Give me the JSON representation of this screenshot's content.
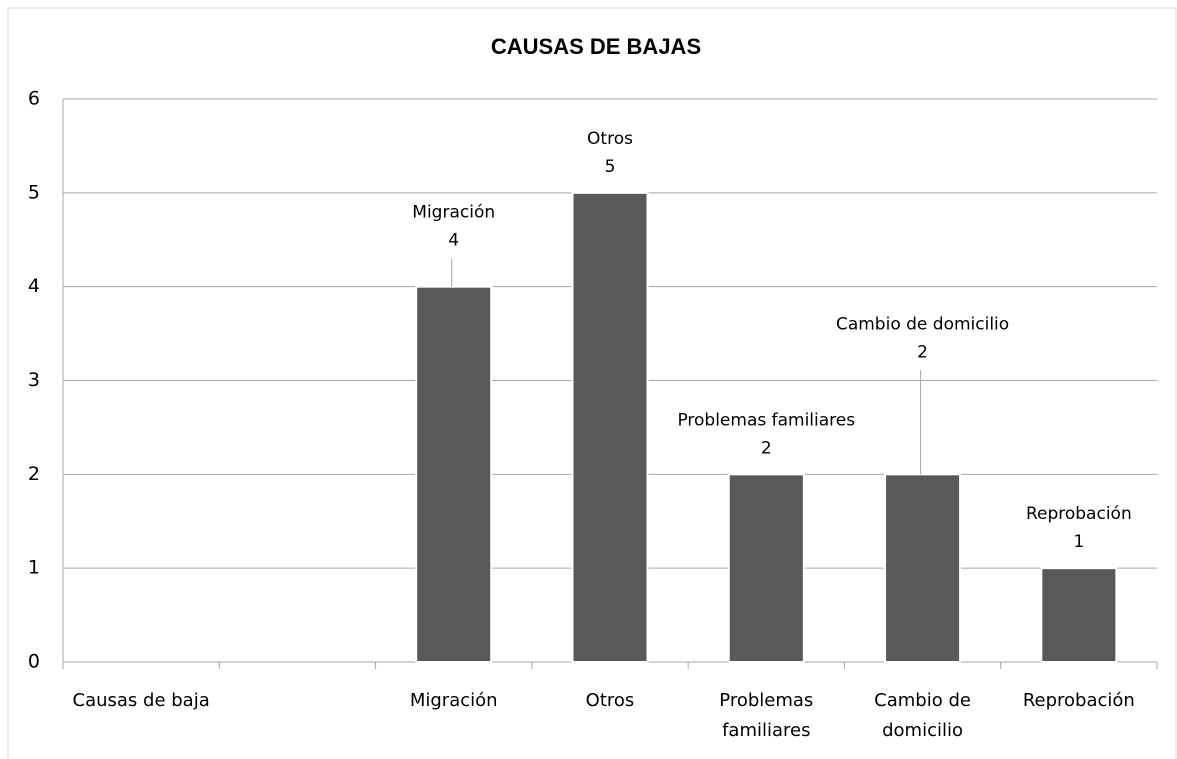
{
  "chart_data": {
    "type": "bar",
    "title": "CAUSAS DE BAJAS",
    "categories": [
      "Causas de baja",
      null,
      "Migración",
      "Otros",
      "Problemas familiares",
      "Cambio de domicilio",
      "Reprobación"
    ],
    "values": [
      null,
      null,
      4,
      5,
      2,
      2,
      1
    ],
    "color": "#595959",
    "ylim": [
      0,
      6
    ],
    "yticks": [
      0,
      1,
      2,
      3,
      4,
      5,
      6
    ],
    "grid": true
  }
}
